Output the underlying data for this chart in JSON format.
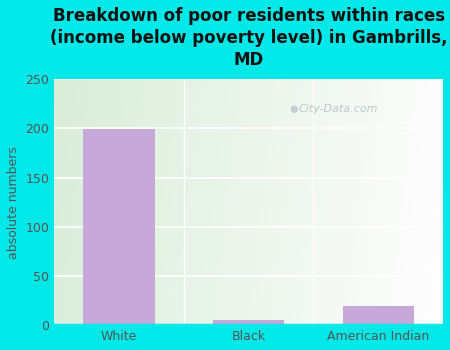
{
  "title": "Breakdown of poor residents within races\n(income below poverty level) in Gambrills,\nMD",
  "categories": [
    "White",
    "Black",
    "American Indian"
  ],
  "values": [
    199,
    5,
    20
  ],
  "bar_color": "#c8a8d8",
  "ylabel": "absolute numbers",
  "ylim": [
    0,
    250
  ],
  "yticks": [
    0,
    50,
    100,
    150,
    200,
    250
  ],
  "background_outer": "#00e8e8",
  "background_inner_left": "#d4edd4",
  "background_inner_right": "#f0faf0",
  "watermark": "City-Data.com",
  "title_fontsize": 12,
  "axis_label_fontsize": 9,
  "tick_fontsize": 9,
  "tick_color": "#555555",
  "title_color": "#111111"
}
